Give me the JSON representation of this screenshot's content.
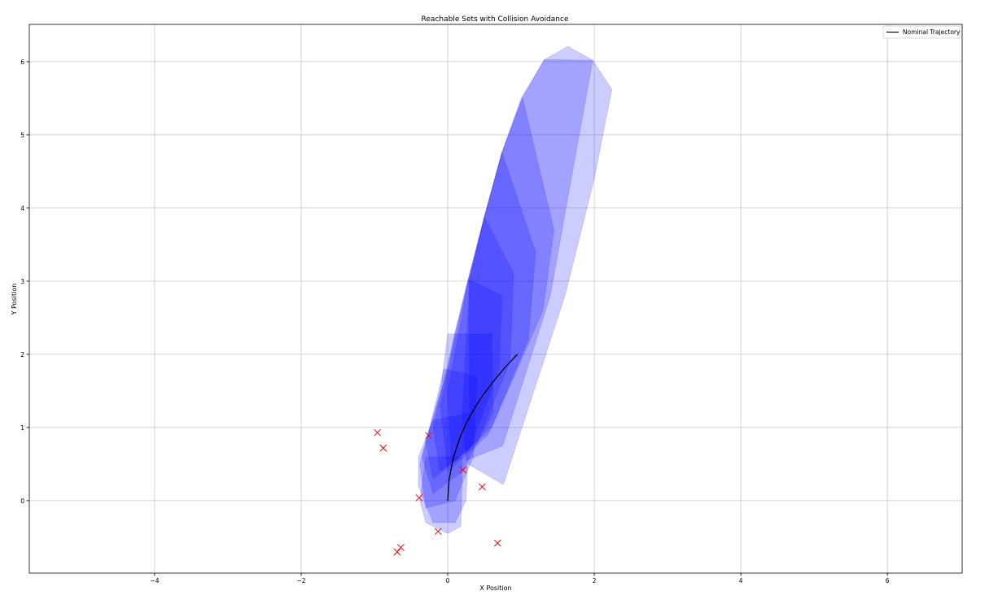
{
  "chart_data": {
    "type": "scatter",
    "title": "Reachable Sets with Collision Avoidance",
    "xlabel": "X Position",
    "ylabel": "Y Position",
    "xlim": [
      -5.71,
      7.02
    ],
    "ylim": [
      -0.99,
      6.51
    ],
    "xticks": [
      -4,
      -2,
      0,
      2,
      4,
      6
    ],
    "yticks": [
      0,
      1,
      2,
      3,
      4,
      5,
      6
    ],
    "grid": true,
    "legend": {
      "placement": "top-right",
      "entries": [
        "Nominal Trajectory"
      ]
    },
    "colors": {
      "reachable_set": "#0000ff",
      "trajectory": "#000000",
      "obstacles": "#ff0000",
      "grid": "#b0b0b0"
    },
    "reachable_set_alpha": 0.2,
    "reachable_sets": [
      [
        [
          1.32,
          6.03
        ],
        [
          1.64,
          6.21
        ],
        [
          1.98,
          6.02
        ],
        [
          2.24,
          5.62
        ],
        [
          2.0,
          4.4
        ],
        [
          1.6,
          2.8
        ],
        [
          0.76,
          0.22
        ],
        [
          0.28,
          0.5
        ],
        [
          0.3,
          1.0
        ],
        [
          0.29,
          3.03
        ],
        [
          0.5,
          3.88
        ],
        [
          0.74,
          4.76
        ],
        [
          1.02,
          5.51
        ]
      ],
      [
        [
          1.0,
          5.5
        ],
        [
          1.32,
          6.03
        ],
        [
          1.98,
          6.02
        ],
        [
          1.65,
          4.2
        ],
        [
          1.4,
          2.8
        ],
        [
          0.75,
          0.75
        ],
        [
          0.25,
          0.55
        ],
        [
          0.2,
          1.2
        ],
        [
          0.3,
          3.0
        ],
        [
          0.5,
          3.88
        ],
        [
          0.74,
          4.76
        ]
      ],
      [
        [
          0.74,
          4.76
        ],
        [
          1.02,
          5.51
        ],
        [
          1.45,
          3.7
        ],
        [
          1.3,
          2.6
        ],
        [
          0.6,
          1.0
        ],
        [
          0.05,
          0.5
        ],
        [
          0.0,
          1.5
        ],
        [
          0.28,
          3.0
        ],
        [
          0.5,
          3.88
        ]
      ],
      [
        [
          0.5,
          3.88
        ],
        [
          0.74,
          4.76
        ],
        [
          1.2,
          3.4
        ],
        [
          1.1,
          2.2
        ],
        [
          0.55,
          0.9
        ],
        [
          0.0,
          0.4
        ],
        [
          -0.1,
          1.3
        ],
        [
          0.28,
          3.03
        ]
      ],
      [
        [
          0.28,
          3.03
        ],
        [
          0.5,
          3.88
        ],
        [
          0.9,
          3.1
        ],
        [
          0.85,
          1.9
        ],
        [
          0.4,
          0.8
        ],
        [
          -0.1,
          0.4
        ],
        [
          -0.2,
          1.0
        ],
        [
          0.1,
          2.3
        ]
      ],
      [
        [
          0.1,
          2.3
        ],
        [
          0.28,
          3.03
        ],
        [
          0.74,
          2.8
        ],
        [
          0.7,
          1.8
        ],
        [
          0.3,
          0.7
        ],
        [
          -0.2,
          0.3
        ],
        [
          -0.3,
          0.8
        ],
        [
          0.0,
          1.8
        ]
      ],
      [
        [
          0.0,
          2.28
        ],
        [
          0.6,
          2.28
        ],
        [
          0.62,
          1.2
        ],
        [
          0.2,
          0.4
        ],
        [
          -0.2,
          0.1
        ],
        [
          -0.35,
          0.6
        ],
        [
          -0.1,
          1.5
        ]
      ],
      [
        [
          -0.05,
          1.8
        ],
        [
          0.4,
          1.7
        ],
        [
          0.35,
          0.6
        ],
        [
          0.1,
          0.0
        ],
        [
          -0.3,
          -0.1
        ],
        [
          -0.38,
          0.5
        ],
        [
          -0.2,
          1.2
        ]
      ],
      [
        [
          -0.2,
          1.1
        ],
        [
          0.3,
          1.2
        ],
        [
          0.25,
          0.0
        ],
        [
          0.1,
          -0.3
        ],
        [
          -0.2,
          -0.3
        ],
        [
          -0.4,
          0.2
        ],
        [
          -0.4,
          0.6
        ]
      ],
      [
        [
          -0.3,
          0.6
        ],
        [
          0.2,
          0.6
        ],
        [
          0.18,
          -0.35
        ],
        [
          0.0,
          -0.45
        ],
        [
          -0.3,
          -0.3
        ],
        [
          -0.38,
          0.0
        ]
      ]
    ],
    "series": [
      {
        "name": "Nominal Trajectory",
        "type": "line",
        "x": [
          0,
          0.02,
          0.08,
          0.18,
          0.3,
          0.45,
          0.6,
          0.78,
          0.95
        ],
        "y": [
          0,
          0.3,
          0.6,
          0.9,
          1.15,
          1.4,
          1.6,
          1.82,
          2.0
        ]
      },
      {
        "type": "scatter",
        "marker": "x",
        "x": [
          -0.96,
          -0.88,
          -0.26,
          0.21,
          0.47,
          -0.39,
          -0.13,
          0.68,
          -0.64,
          -0.69
        ],
        "y": [
          0.93,
          0.72,
          0.89,
          0.42,
          0.19,
          0.04,
          -0.42,
          -0.58,
          -0.64,
          -0.7
        ]
      }
    ]
  }
}
